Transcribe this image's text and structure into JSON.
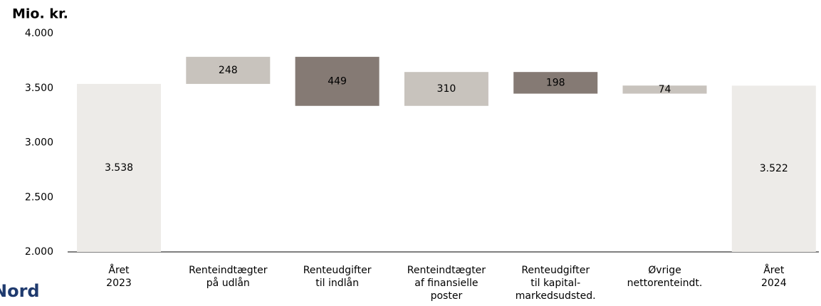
{
  "chart_data": {
    "type": "waterfall",
    "y_axis_label": "Mio. kr.",
    "logo_text": "Nord",
    "categories": [
      [
        "Året",
        "2023"
      ],
      [
        "Renteindtægter",
        "på udlån"
      ],
      [
        "Renteudgifter",
        "til indlån"
      ],
      [
        "Renteindtægter",
        "af finansielle",
        "poster"
      ],
      [
        "Renteudgifter",
        "til kapital-",
        "markedsudsted."
      ],
      [
        "Øvrige",
        "nettorenteindt."
      ],
      [
        "Året",
        "2024"
      ]
    ],
    "values": [
      3538,
      248,
      -449,
      310,
      -198,
      74,
      3522
    ],
    "value_labels": [
      "3.538",
      "248",
      "449",
      "310",
      "198",
      "74",
      "3.522"
    ],
    "measure": [
      "absolute",
      "relative",
      "relative",
      "relative",
      "relative",
      "relative",
      "total"
    ],
    "colors": {
      "total": "#edebe8",
      "increase": "#c8c3bd",
      "decrease": "#857a74"
    },
    "ylim": [
      2000,
      4000
    ],
    "yticks": [
      {
        "value": 2000,
        "label": "2.000"
      },
      {
        "value": 2500,
        "label": "2.500"
      },
      {
        "value": 3000,
        "label": "3.000"
      },
      {
        "value": 3500,
        "label": "3.500"
      },
      {
        "value": 4000,
        "label": "4.000"
      }
    ],
    "grid": false
  }
}
